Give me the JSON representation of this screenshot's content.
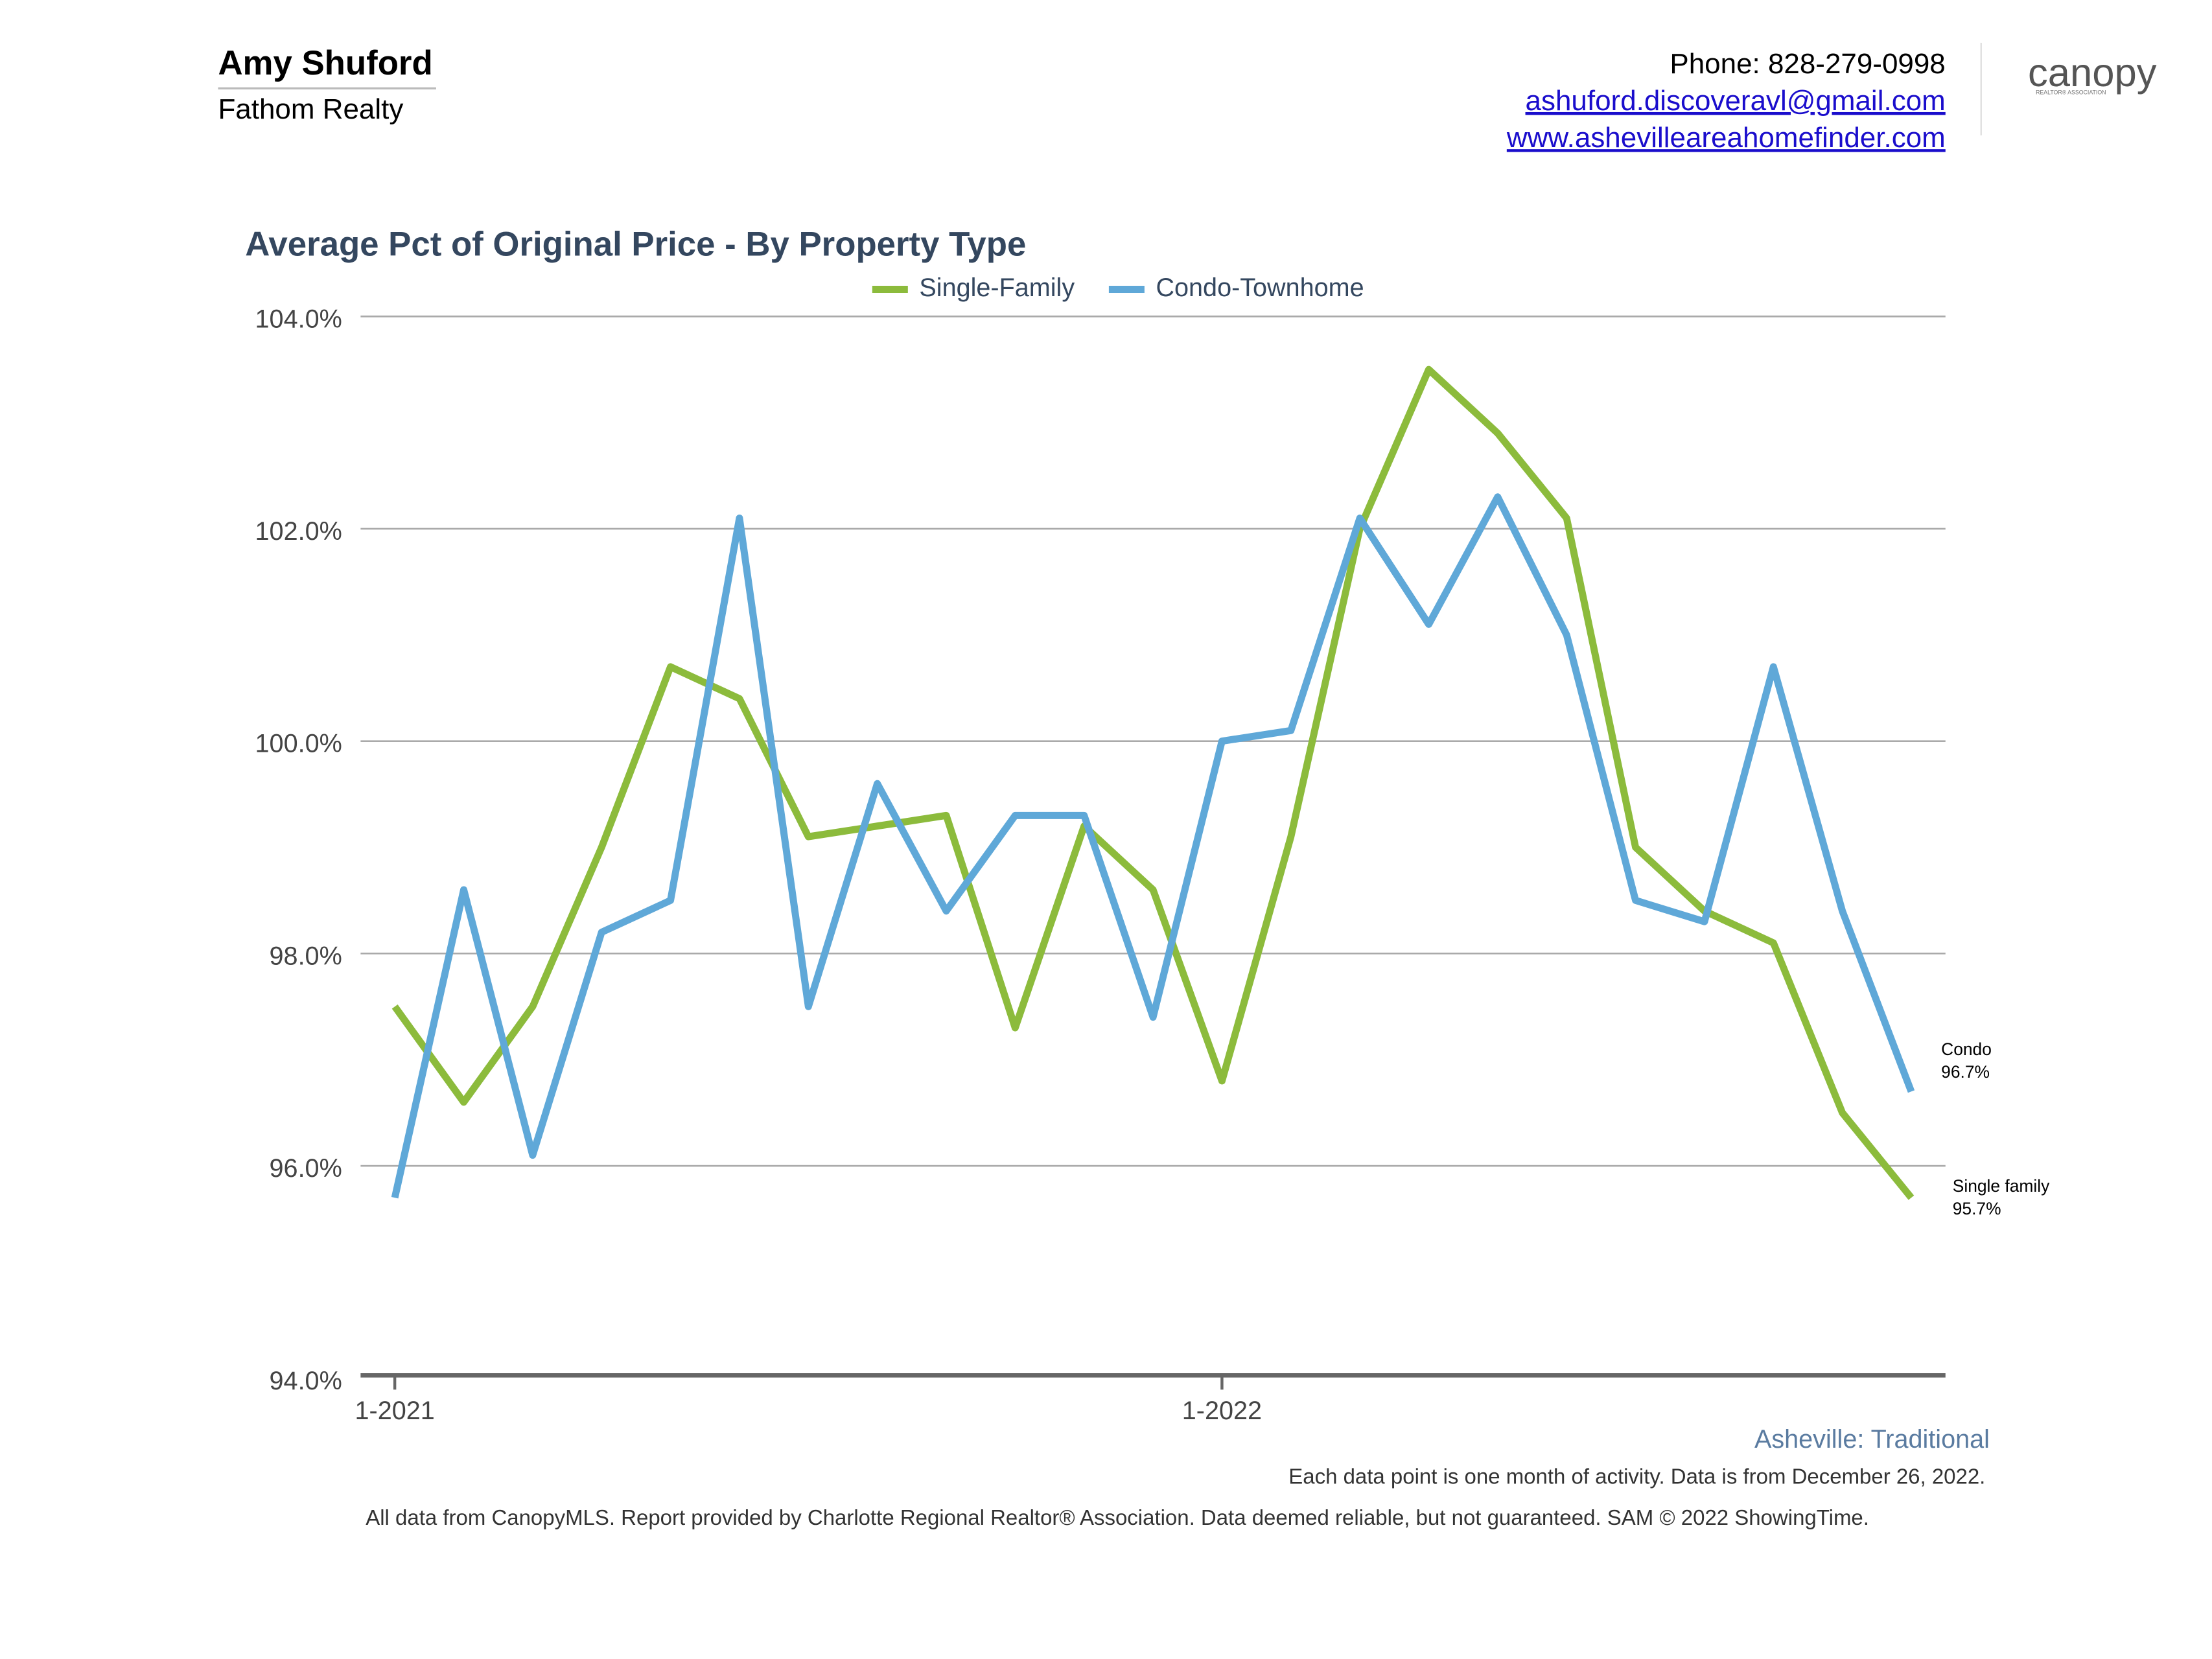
{
  "header": {
    "name": "Amy Shuford",
    "company": "Fathom Realty",
    "phone": "Phone: 828-279-0998",
    "email": "ashuford.discoveravl@gmail.com",
    "website": "www.ashevilleareahomefinder.com",
    "logo": "canopy",
    "logo_subtitle": "REALTOR® ASSOCIATION"
  },
  "chart_data": {
    "type": "line",
    "title": "Average Pct of Original Price - By Property Type",
    "categories": [
      "1-2021",
      null,
      null,
      null,
      null,
      null,
      null,
      null,
      null,
      null,
      null,
      null,
      "1-2022",
      null,
      null,
      null,
      null,
      null,
      null,
      null,
      null,
      null,
      null
    ],
    "series": [
      {
        "name": "Single-Family",
        "color": "#8cbb3c",
        "values": [
          97.5,
          96.6,
          97.5,
          99.0,
          100.7,
          100.4,
          99.1,
          99.2,
          99.3,
          97.3,
          99.2,
          98.6,
          96.8,
          99.1,
          102.0,
          103.5,
          102.9,
          102.1,
          99.0,
          98.4,
          98.1,
          96.5,
          95.7
        ]
      },
      {
        "name": "Condo-Townhome",
        "color": "#5fa8d8",
        "values": [
          95.7,
          98.6,
          96.1,
          98.2,
          98.5,
          102.1,
          97.5,
          99.6,
          98.4,
          99.3,
          99.3,
          97.4,
          100.0,
          100.1,
          102.1,
          101.1,
          102.3,
          101.0,
          98.5,
          98.3,
          100.7,
          98.4,
          96.7
        ]
      }
    ],
    "ylim": [
      94,
      104
    ],
    "yticks": [
      {
        "value": 94,
        "label": "94.0%"
      },
      {
        "value": 96,
        "label": "96.0%"
      },
      {
        "value": 98,
        "label": "98.0%"
      },
      {
        "value": 100,
        "label": "100.0%"
      },
      {
        "value": 102,
        "label": "102.0%"
      },
      {
        "value": 104,
        "label": "104.0%"
      }
    ],
    "grid": true,
    "legend": "top",
    "annotations": [
      {
        "text": "Condo",
        "value_label": "96.7%"
      },
      {
        "text": "Single family",
        "value_label": "95.7%"
      }
    ],
    "subtitle": "Asheville: Traditional",
    "note": "Each data point is one month of activity. Data is from December 26, 2022.",
    "footer": "All data from CanopyMLS. Report provided by Charlotte Regional Realtor® Association. Data deemed reliable, but not guaranteed. SAM © 2022 ShowingTime."
  }
}
